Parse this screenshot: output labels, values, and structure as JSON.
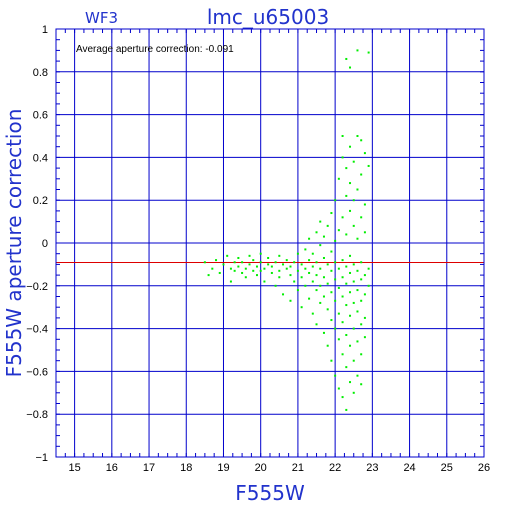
{
  "chart_data": {
    "type": "scatter",
    "title": "lmc_u65003",
    "chip_label": "WF3",
    "xlabel": "F555W",
    "ylabel": "F555W aperture correction",
    "annotation": "Average aperture correction: -0.091",
    "xlim": [
      14.5,
      26
    ],
    "ylim": [
      -1,
      1
    ],
    "x_ticks": [
      15,
      16,
      17,
      18,
      19,
      20,
      21,
      22,
      23,
      24,
      25,
      26
    ],
    "y_ticks": [
      -1,
      -0.8,
      -0.6,
      -0.4,
      -0.2,
      0,
      0.2,
      0.4,
      0.6,
      0.8,
      1
    ],
    "y_tick_labels": [
      "−1",
      "−0.8",
      "−0.6",
      "−0.4",
      "−0.2",
      "0",
      "0.2",
      "0.4",
      "0.6",
      "0.8",
      "1"
    ],
    "average_line": -0.091,
    "grid": true,
    "colors": {
      "axes": "#0000cc",
      "points": "#00ee00",
      "average_line": "#dd0000",
      "text": "#2233cc"
    },
    "series": [
      {
        "points": [
          [
            18.5,
            -0.09
          ],
          [
            18.6,
            -0.15
          ],
          [
            18.7,
            -0.12
          ],
          [
            18.8,
            -0.08
          ],
          [
            18.9,
            -0.14
          ],
          [
            19.0,
            -0.1
          ],
          [
            19.1,
            -0.06
          ],
          [
            19.2,
            -0.12
          ],
          [
            19.2,
            -0.18
          ],
          [
            19.3,
            -0.09
          ],
          [
            19.3,
            -0.13
          ],
          [
            19.4,
            -0.11
          ],
          [
            19.4,
            -0.07
          ],
          [
            19.5,
            -0.14
          ],
          [
            19.5,
            -0.09
          ],
          [
            19.6,
            -0.12
          ],
          [
            19.6,
            -0.16
          ],
          [
            19.7,
            -0.1
          ],
          [
            19.7,
            -0.06
          ],
          [
            19.8,
            -0.13
          ],
          [
            19.8,
            -0.08
          ],
          [
            19.9,
            -0.11
          ],
          [
            19.9,
            -0.15
          ],
          [
            20.0,
            -0.09
          ],
          [
            20.0,
            -0.13
          ],
          [
            20.0,
            -0.05
          ],
          [
            20.1,
            -0.12
          ],
          [
            20.1,
            -0.18
          ],
          [
            20.2,
            -0.1
          ],
          [
            20.2,
            -0.07
          ],
          [
            20.3,
            -0.14
          ],
          [
            20.3,
            -0.11
          ],
          [
            20.4,
            -0.09
          ],
          [
            20.4,
            -0.2
          ],
          [
            20.5,
            -0.13
          ],
          [
            20.5,
            -0.06
          ],
          [
            20.5,
            -0.16
          ],
          [
            20.6,
            -0.1
          ],
          [
            20.6,
            -0.24
          ],
          [
            20.7,
            -0.12
          ],
          [
            20.7,
            -0.08
          ],
          [
            20.8,
            -0.15
          ],
          [
            20.8,
            -0.11
          ],
          [
            20.8,
            -0.27
          ],
          [
            20.9,
            -0.09
          ],
          [
            20.9,
            -0.18
          ],
          [
            21.0,
            -0.13
          ],
          [
            21.0,
            -0.05
          ],
          [
            21.0,
            -0.22
          ],
          [
            21.1,
            -0.1
          ],
          [
            21.1,
            -0.16
          ],
          [
            21.1,
            -0.3
          ],
          [
            21.2,
            -0.12
          ],
          [
            21.2,
            -0.03
          ],
          [
            21.2,
            -0.2
          ],
          [
            21.3,
            -0.08
          ],
          [
            21.3,
            -0.14
          ],
          [
            21.3,
            -0.26
          ],
          [
            21.3,
            0.02
          ],
          [
            21.4,
            -0.11
          ],
          [
            21.4,
            -0.18
          ],
          [
            21.4,
            -0.33
          ],
          [
            21.4,
            -0.05
          ],
          [
            21.5,
            -0.09
          ],
          [
            21.5,
            -0.15
          ],
          [
            21.5,
            -0.22
          ],
          [
            21.5,
            0.05
          ],
          [
            21.5,
            -0.38
          ],
          [
            21.6,
            -0.12
          ],
          [
            21.6,
            -0.01
          ],
          [
            21.6,
            -0.2
          ],
          [
            21.6,
            -0.28
          ],
          [
            21.6,
            0.1
          ],
          [
            21.7,
            -0.07
          ],
          [
            21.7,
            -0.16
          ],
          [
            21.7,
            -0.25
          ],
          [
            21.7,
            -0.42
          ],
          [
            21.7,
            0.03
          ],
          [
            21.8,
            -0.1
          ],
          [
            21.8,
            -0.19
          ],
          [
            21.8,
            -0.31
          ],
          [
            21.8,
            0.08
          ],
          [
            21.8,
            -0.48
          ],
          [
            21.9,
            -0.13
          ],
          [
            21.9,
            -0.04
          ],
          [
            21.9,
            -0.23
          ],
          [
            21.9,
            -0.36
          ],
          [
            21.9,
            0.14
          ],
          [
            21.9,
            -0.55
          ],
          [
            22.0,
            -0.09
          ],
          [
            22.0,
            -0.17
          ],
          [
            22.0,
            -0.27
          ],
          [
            22.0,
            0.01
          ],
          [
            22.0,
            -0.4
          ],
          [
            22.0,
            0.2
          ],
          [
            22.0,
            -0.62
          ],
          [
            22.1,
            -0.12
          ],
          [
            22.1,
            -0.21
          ],
          [
            22.1,
            -0.33
          ],
          [
            22.1,
            0.06
          ],
          [
            22.1,
            -0.45
          ],
          [
            22.1,
            0.3
          ],
          [
            22.1,
            -0.68
          ],
          [
            22.2,
            -0.08
          ],
          [
            22.2,
            -0.16
          ],
          [
            22.2,
            -0.25
          ],
          [
            22.2,
            -0.37
          ],
          [
            22.2,
            0.12
          ],
          [
            22.2,
            -0.52
          ],
          [
            22.2,
            0.4
          ],
          [
            22.2,
            -0.72
          ],
          [
            22.2,
            0.5
          ],
          [
            22.3,
            -0.11
          ],
          [
            22.3,
            -0.19
          ],
          [
            22.3,
            -0.29
          ],
          [
            22.3,
            0.04
          ],
          [
            22.3,
            -0.43
          ],
          [
            22.3,
            0.22
          ],
          [
            22.3,
            -0.58
          ],
          [
            22.3,
            0.35
          ],
          [
            22.3,
            -0.78
          ],
          [
            22.3,
            0.86
          ],
          [
            22.4,
            -0.14
          ],
          [
            22.4,
            -0.06
          ],
          [
            22.4,
            -0.23
          ],
          [
            22.4,
            -0.34
          ],
          [
            22.4,
            0.15
          ],
          [
            22.4,
            -0.48
          ],
          [
            22.4,
            0.28
          ],
          [
            22.4,
            -0.65
          ],
          [
            22.4,
            0.45
          ],
          [
            22.4,
            0.82
          ],
          [
            22.5,
            -0.1
          ],
          [
            22.5,
            -0.18
          ],
          [
            22.5,
            -0.28
          ],
          [
            22.5,
            0.08
          ],
          [
            22.5,
            -0.4
          ],
          [
            22.5,
            0.2
          ],
          [
            22.5,
            -0.55
          ],
          [
            22.5,
            0.38
          ],
          [
            22.5,
            -0.7
          ],
          [
            22.6,
            -0.13
          ],
          [
            22.6,
            -0.22
          ],
          [
            22.6,
            -0.32
          ],
          [
            22.6,
            0.02
          ],
          [
            22.6,
            -0.46
          ],
          [
            22.6,
            0.25
          ],
          [
            22.6,
            -0.62
          ],
          [
            22.6,
            0.5
          ],
          [
            22.6,
            0.9
          ],
          [
            22.7,
            -0.09
          ],
          [
            22.7,
            -0.17
          ],
          [
            22.7,
            -0.27
          ],
          [
            22.7,
            -0.38
          ],
          [
            22.7,
            0.12
          ],
          [
            22.7,
            -0.52
          ],
          [
            22.7,
            0.32
          ],
          [
            22.7,
            -0.66
          ],
          [
            22.7,
            0.48
          ],
          [
            22.8,
            -0.15
          ],
          [
            22.8,
            -0.24
          ],
          [
            22.8,
            -0.35
          ],
          [
            22.8,
            0.05
          ],
          [
            22.8,
            -0.44
          ],
          [
            22.8,
            0.18
          ],
          [
            22.8,
            0.42
          ],
          [
            22.9,
            -0.12
          ],
          [
            22.9,
            -0.2
          ],
          [
            22.9,
            0.36
          ],
          [
            22.9,
            0.89
          ]
        ]
      }
    ]
  }
}
